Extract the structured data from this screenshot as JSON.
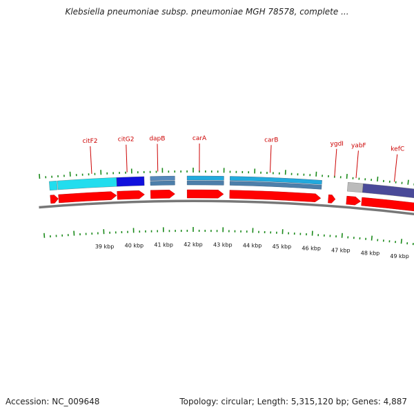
{
  "title": "Klebsiella pneumoniae subsp. pneumoniae MGH 78578, complete ...",
  "footer": {
    "accession": "Accession: NC_009648",
    "summary": "Topology: circular; Length: 5,315,120 bp; Genes: 4,887"
  },
  "colors": {
    "cds_red": "#ff0000",
    "gene_label": "#cc0000",
    "tick_green": "#1a8a1a",
    "backbone": "#777777",
    "cyan": "#22ddee",
    "blue": "#1111dd",
    "steel": "#5588bb",
    "sky": "#22aadd",
    "grey": "#bbbbbb",
    "slate": "#4a4a99"
  },
  "gene_labels": [
    {
      "name": "citF2",
      "kbp": 38.7
    },
    {
      "name": "citG2",
      "kbp": 39.85
    },
    {
      "name": "dapB",
      "kbp": 40.85
    },
    {
      "name": "carA",
      "kbp": 42.2
    },
    {
      "name": "carB",
      "kbp": 44.5
    },
    {
      "name": "ygdI",
      "kbp": 46.6
    },
    {
      "name": "yabF",
      "kbp": 47.3
    },
    {
      "name": "kefC",
      "kbp": 48.55
    }
  ],
  "kbp_ticks": [
    {
      "label": "39 kbp",
      "kbp": 39
    },
    {
      "label": "40 kbp",
      "kbp": 40
    },
    {
      "label": "41 kbp",
      "kbp": 41
    },
    {
      "label": "42 kbp",
      "kbp": 42
    },
    {
      "label": "43 kbp",
      "kbp": 43
    },
    {
      "label": "44 kbp",
      "kbp": 44
    },
    {
      "label": "45 kbp",
      "kbp": 45
    },
    {
      "label": "46 kbp",
      "kbp": 46
    },
    {
      "label": "47 kbp",
      "kbp": 47
    },
    {
      "label": "48 kbp",
      "kbp": 48
    },
    {
      "label": "49 kbp",
      "kbp": 49
    }
  ],
  "features_top": [
    {
      "start": 37.3,
      "end": 37.55,
      "color": "#22ddee"
    },
    {
      "start": 37.57,
      "end": 39.5,
      "color": "#22ddee"
    },
    {
      "start": 39.5,
      "end": 40.4,
      "color": "#1111dd"
    },
    {
      "start": 40.6,
      "end": 41.4,
      "color": "#5588bb",
      "double": true
    },
    {
      "start": 41.8,
      "end": 43.0,
      "color": "#22aadd",
      "double": true
    },
    {
      "start": 43.2,
      "end": 46.2,
      "color": "#22aadd",
      "double": true
    },
    {
      "start": 47.05,
      "end": 47.55,
      "color": "#bbbbbb"
    },
    {
      "start": 47.55,
      "end": 49.5,
      "color": "#4a4a99"
    }
  ],
  "features_cds": [
    {
      "start": 37.3,
      "end": 37.56
    },
    {
      "start": 37.57,
      "end": 39.48
    },
    {
      "start": 39.5,
      "end": 40.4
    },
    {
      "start": 40.6,
      "end": 41.4
    },
    {
      "start": 41.8,
      "end": 43.0
    },
    {
      "start": 43.2,
      "end": 46.2
    },
    {
      "start": 46.45,
      "end": 46.68
    },
    {
      "start": 47.05,
      "end": 47.52
    },
    {
      "start": 47.55,
      "end": 49.5
    }
  ]
}
